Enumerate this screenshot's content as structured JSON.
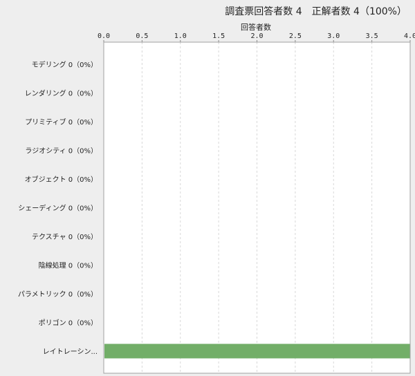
{
  "chart_data": {
    "type": "bar",
    "orientation": "horizontal",
    "title": "調査票回答者数 4　正解者数 4（100%）",
    "xlabel": "回答者数",
    "ylabel": "",
    "xlim": [
      0,
      4
    ],
    "xticks": [
      "0.0",
      "0.5",
      "1.0",
      "1.5",
      "2.0",
      "2.5",
      "3.0",
      "3.5",
      "4.0"
    ],
    "grid": true,
    "categories": [
      "モデリング 0（0%）",
      "レンダリング 0（0%）",
      "プリミティブ 0（0%）",
      "ラジオシティ 0（0%）",
      "オブジェクト 0（0%）",
      "シェーディング 0（0%）",
      "テクスチャ 0（0%）",
      "陰線処理 0（0%）",
      "パラメトリック 0（0%）",
      "ポリゴン 0（0%）",
      "レイトレーシン..."
    ],
    "values": [
      0,
      0,
      0,
      0,
      0,
      0,
      0,
      0,
      0,
      0,
      4
    ],
    "bar_color": "#72ae68"
  }
}
